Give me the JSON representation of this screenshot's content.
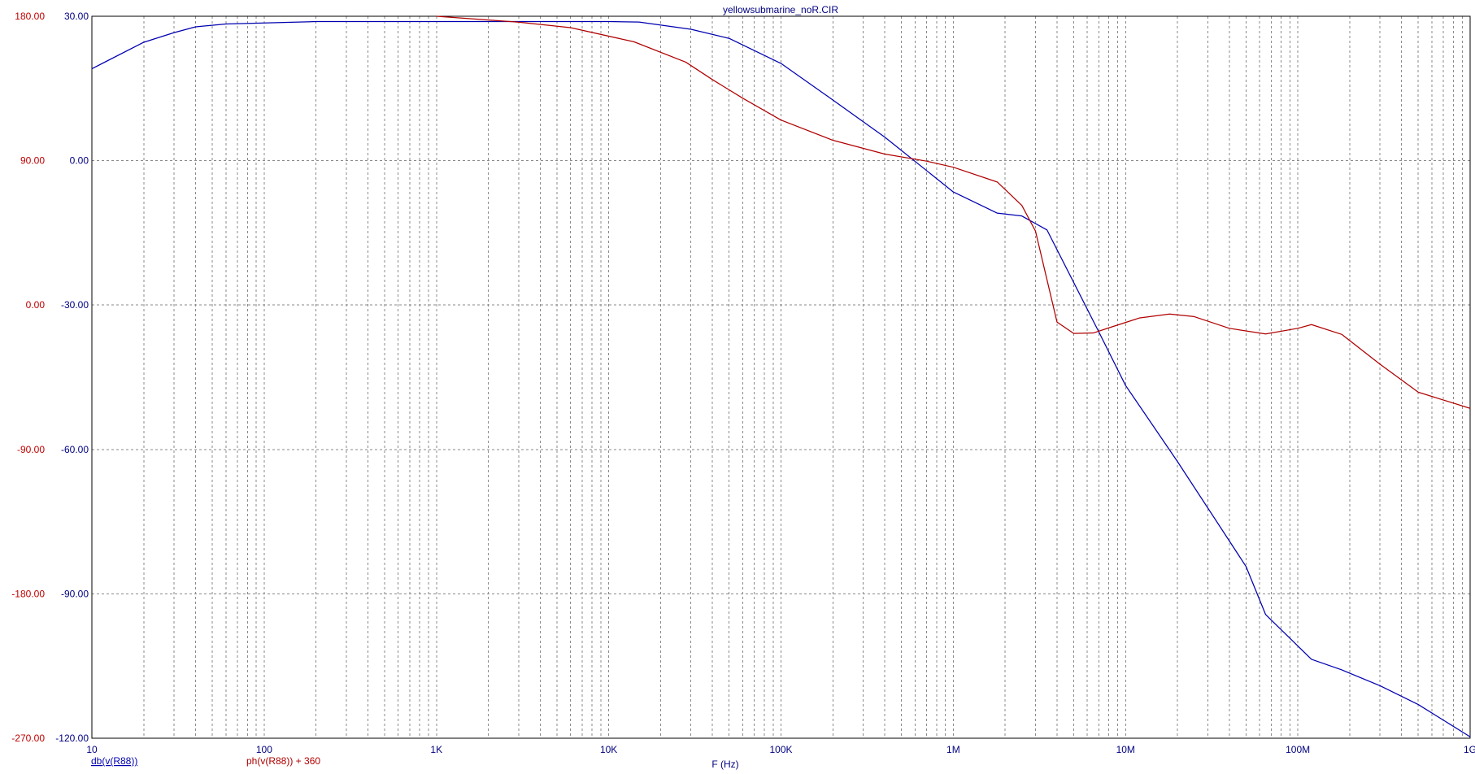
{
  "chart_data": {
    "type": "line",
    "title": "yellowsubmarine_noR.CIR",
    "xlabel": "F (Hz)",
    "x_scale": "log",
    "xlim": [
      10,
      1000000000
    ],
    "x_ticks": [
      {
        "value": 10,
        "label": "10"
      },
      {
        "value": 100,
        "label": "100"
      },
      {
        "value": 1000,
        "label": "1K"
      },
      {
        "value": 10000,
        "label": "10K"
      },
      {
        "value": 100000,
        "label": "100K"
      },
      {
        "value": 1000000,
        "label": "1M"
      },
      {
        "value": 10000000,
        "label": "10M"
      },
      {
        "value": 100000000,
        "label": "100M"
      },
      {
        "value": 1000000000,
        "label": "1G"
      }
    ],
    "y_left": {
      "ylim": [
        -270,
        180
      ],
      "ticks": [
        "180.00",
        "90.00",
        "0.00",
        "-90.00",
        "-180.00",
        "-270.00"
      ],
      "color": "#c00000"
    },
    "y_right": {
      "ylim": [
        -120,
        30
      ],
      "ticks": [
        "30.00",
        "0.00",
        "-30.00",
        "-60.00",
        "-90.00",
        "-120.00"
      ],
      "color": "#000080"
    },
    "grid": true,
    "series": [
      {
        "name": "db(v(R88))",
        "axis": "right",
        "color": "#0000b0",
        "points": [
          [
            10,
            19.1
          ],
          [
            20,
            24.6
          ],
          [
            30,
            26.6
          ],
          [
            40,
            27.8
          ],
          [
            60,
            28.4
          ],
          [
            100,
            28.6
          ],
          [
            200,
            28.9
          ],
          [
            1000,
            28.9
          ],
          [
            10000,
            28.9
          ],
          [
            15000,
            28.8
          ],
          [
            30000,
            27.3
          ],
          [
            50000,
            25.4
          ],
          [
            100000,
            20.2
          ],
          [
            200000,
            12.6
          ],
          [
            400000,
            4.9
          ],
          [
            1000000,
            -6.5
          ],
          [
            1800000,
            -10.9
          ],
          [
            2500000,
            -11.5
          ],
          [
            3500000,
            -14.4
          ],
          [
            7000000,
            -35.6
          ],
          [
            10000000,
            -46.7
          ],
          [
            20000000,
            -62.5
          ],
          [
            50000000,
            -84.3
          ],
          [
            65000000,
            -94.3
          ],
          [
            120000000,
            -103.6
          ],
          [
            180000000,
            -105.8
          ],
          [
            300000000,
            -109.1
          ],
          [
            500000000,
            -113.0
          ],
          [
            1000000000,
            -119.7
          ]
        ]
      },
      {
        "name": "ph(v(R88)) + 360",
        "axis": "left",
        "color": "#b00000",
        "points": [
          [
            1000,
            180
          ],
          [
            3000,
            176.3
          ],
          [
            6000,
            172.9
          ],
          [
            14000,
            164.1
          ],
          [
            28000,
            151.4
          ],
          [
            40000,
            140.5
          ],
          [
            60000,
            128.9
          ],
          [
            100000,
            115.3
          ],
          [
            200000,
            102.7
          ],
          [
            400000,
            94.1
          ],
          [
            700000,
            89.7
          ],
          [
            1000000,
            85.9
          ],
          [
            1800000,
            76.7
          ],
          [
            2500000,
            62.1
          ],
          [
            3000000,
            46.1
          ],
          [
            4000000,
            -10.6
          ],
          [
            5000000,
            -17.7
          ],
          [
            6500000,
            -17.4
          ],
          [
            8000000,
            -14.2
          ],
          [
            12000000,
            -8.1
          ],
          [
            18000000,
            -5.6
          ],
          [
            25000000,
            -7.2
          ],
          [
            40000000,
            -14.5
          ],
          [
            65000000,
            -18.0
          ],
          [
            100000000,
            -14.5
          ],
          [
            120000000,
            -12.2
          ],
          [
            180000000,
            -18.3
          ],
          [
            300000000,
            -36.9
          ],
          [
            500000000,
            -54.3
          ],
          [
            1000000000,
            -64.4
          ]
        ]
      }
    ]
  }
}
